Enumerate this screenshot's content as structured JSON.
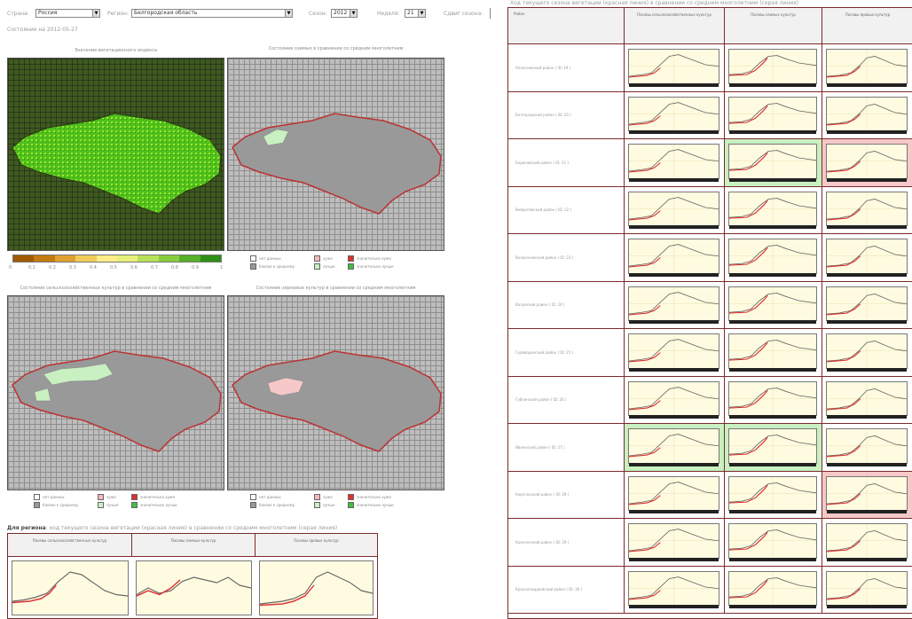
{
  "controls": {
    "country_label": "Страна:",
    "country_value": "Россия",
    "region_label": "Регион:",
    "region_value": "Белгородская область",
    "season_label": "Сезон:",
    "season_value": "2012",
    "week_label": "Неделя:",
    "week_value": "21",
    "shift_label": "Сдвиг сезона:"
  },
  "state_date": "Состояние на 2012-05-27",
  "maps": {
    "ndvi_title": "Значение вегетационного индекса",
    "winter_title": "Состояние озимых в сравнении со средним многолетним",
    "spring_title": "Состояние сельскохозяйственных культур в сравнении со средним многолетним",
    "grain_title": "Состояние зерновых культур в сравнении со средним многолетним"
  },
  "scale_ticks": [
    "0",
    "0.1",
    "0.2",
    "0.3",
    "0.4",
    "0.5",
    "0.6",
    "0.7",
    "0.8",
    "0.9",
    "1"
  ],
  "legend": {
    "no_data": "нет данных",
    "close_to_avg": "близко к среднему",
    "worse": "хуже",
    "better": "лучше",
    "much_worse": "значительно хуже",
    "much_better": "значительно лучше"
  },
  "colors": {
    "border_red": "#7b2b2b",
    "chart_bg": "#fffbe0",
    "green": "#c8f0c0",
    "red": "#f6c8c8"
  },
  "region_section": {
    "title_prefix": "Для региона",
    "title_rest": ": ход текущего сезона вегетации (красная линия) в сравнении со средним многолетним (серая линия)",
    "headers": [
      "Посевы сельскохозяйственных культур",
      "Посевы озимых культур",
      "Посевы яровых культур"
    ]
  },
  "district_section": {
    "title": "Ход текущего сезона вегетации (красная линия) в сравнении со средним многолетним (серая линия)",
    "col_district": "Район",
    "headers": [
      "Посевы сельскохозяйственных культур",
      "Посевы озимых культур",
      "Посевы яровых культур"
    ],
    "rows": [
      {
        "name": "Алексеевский район ( ID: 19 )",
        "bg": [
          "",
          "",
          ""
        ]
      },
      {
        "name": "Белгородский район ( ID: 20 )",
        "bg": [
          "",
          "",
          ""
        ]
      },
      {
        "name": "Борисовский район ( ID: 21 )",
        "bg": [
          "",
          "green",
          "red"
        ]
      },
      {
        "name": "Вейделевский район ( ID: 22 )",
        "bg": [
          "",
          "",
          ""
        ]
      },
      {
        "name": "Волоконовский район ( ID: 23 )",
        "bg": [
          "",
          "",
          ""
        ]
      },
      {
        "name": "Валуйский район ( ID: 24 )",
        "bg": [
          "",
          "",
          ""
        ]
      },
      {
        "name": "Грайворонский район ( ID: 25 )",
        "bg": [
          "",
          "",
          ""
        ]
      },
      {
        "name": "Губкинский район ( ID: 26 )",
        "bg": [
          "",
          "",
          ""
        ]
      },
      {
        "name": "Ивнянский район ( ID: 27 )",
        "bg": [
          "green",
          "green",
          ""
        ]
      },
      {
        "name": "Корочанский район ( ID: 28 )",
        "bg": [
          "",
          "",
          "red"
        ]
      },
      {
        "name": "Красненский район ( ID: 29 )",
        "bg": [
          "",
          "",
          ""
        ]
      },
      {
        "name": "Красногвардейский район ( ID: 30 )",
        "bg": [
          "",
          "",
          ""
        ]
      }
    ]
  }
}
